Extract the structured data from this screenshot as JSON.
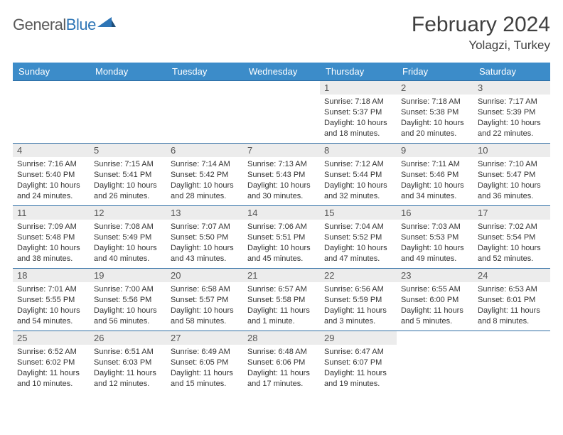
{
  "brand": {
    "name1": "General",
    "name2": "Blue",
    "logo_color": "#2e75b6"
  },
  "title": "February 2024",
  "location": "Yolagzi, Turkey",
  "colors": {
    "header_bg": "#3c8cc9",
    "header_text": "#ffffff",
    "row_divider": "#2e6da4",
    "daynum_bg": "#ececec",
    "text": "#333333"
  },
  "weekdays": [
    "Sunday",
    "Monday",
    "Tuesday",
    "Wednesday",
    "Thursday",
    "Friday",
    "Saturday"
  ],
  "weeks": [
    [
      {
        "n": "",
        "sunrise": "",
        "sunset": "",
        "daylight": ""
      },
      {
        "n": "",
        "sunrise": "",
        "sunset": "",
        "daylight": ""
      },
      {
        "n": "",
        "sunrise": "",
        "sunset": "",
        "daylight": ""
      },
      {
        "n": "",
        "sunrise": "",
        "sunset": "",
        "daylight": ""
      },
      {
        "n": "1",
        "sunrise": "Sunrise: 7:18 AM",
        "sunset": "Sunset: 5:37 PM",
        "daylight": "Daylight: 10 hours and 18 minutes."
      },
      {
        "n": "2",
        "sunrise": "Sunrise: 7:18 AM",
        "sunset": "Sunset: 5:38 PM",
        "daylight": "Daylight: 10 hours and 20 minutes."
      },
      {
        "n": "3",
        "sunrise": "Sunrise: 7:17 AM",
        "sunset": "Sunset: 5:39 PM",
        "daylight": "Daylight: 10 hours and 22 minutes."
      }
    ],
    [
      {
        "n": "4",
        "sunrise": "Sunrise: 7:16 AM",
        "sunset": "Sunset: 5:40 PM",
        "daylight": "Daylight: 10 hours and 24 minutes."
      },
      {
        "n": "5",
        "sunrise": "Sunrise: 7:15 AM",
        "sunset": "Sunset: 5:41 PM",
        "daylight": "Daylight: 10 hours and 26 minutes."
      },
      {
        "n": "6",
        "sunrise": "Sunrise: 7:14 AM",
        "sunset": "Sunset: 5:42 PM",
        "daylight": "Daylight: 10 hours and 28 minutes."
      },
      {
        "n": "7",
        "sunrise": "Sunrise: 7:13 AM",
        "sunset": "Sunset: 5:43 PM",
        "daylight": "Daylight: 10 hours and 30 minutes."
      },
      {
        "n": "8",
        "sunrise": "Sunrise: 7:12 AM",
        "sunset": "Sunset: 5:44 PM",
        "daylight": "Daylight: 10 hours and 32 minutes."
      },
      {
        "n": "9",
        "sunrise": "Sunrise: 7:11 AM",
        "sunset": "Sunset: 5:46 PM",
        "daylight": "Daylight: 10 hours and 34 minutes."
      },
      {
        "n": "10",
        "sunrise": "Sunrise: 7:10 AM",
        "sunset": "Sunset: 5:47 PM",
        "daylight": "Daylight: 10 hours and 36 minutes."
      }
    ],
    [
      {
        "n": "11",
        "sunrise": "Sunrise: 7:09 AM",
        "sunset": "Sunset: 5:48 PM",
        "daylight": "Daylight: 10 hours and 38 minutes."
      },
      {
        "n": "12",
        "sunrise": "Sunrise: 7:08 AM",
        "sunset": "Sunset: 5:49 PM",
        "daylight": "Daylight: 10 hours and 40 minutes."
      },
      {
        "n": "13",
        "sunrise": "Sunrise: 7:07 AM",
        "sunset": "Sunset: 5:50 PM",
        "daylight": "Daylight: 10 hours and 43 minutes."
      },
      {
        "n": "14",
        "sunrise": "Sunrise: 7:06 AM",
        "sunset": "Sunset: 5:51 PM",
        "daylight": "Daylight: 10 hours and 45 minutes."
      },
      {
        "n": "15",
        "sunrise": "Sunrise: 7:04 AM",
        "sunset": "Sunset: 5:52 PM",
        "daylight": "Daylight: 10 hours and 47 minutes."
      },
      {
        "n": "16",
        "sunrise": "Sunrise: 7:03 AM",
        "sunset": "Sunset: 5:53 PM",
        "daylight": "Daylight: 10 hours and 49 minutes."
      },
      {
        "n": "17",
        "sunrise": "Sunrise: 7:02 AM",
        "sunset": "Sunset: 5:54 PM",
        "daylight": "Daylight: 10 hours and 52 minutes."
      }
    ],
    [
      {
        "n": "18",
        "sunrise": "Sunrise: 7:01 AM",
        "sunset": "Sunset: 5:55 PM",
        "daylight": "Daylight: 10 hours and 54 minutes."
      },
      {
        "n": "19",
        "sunrise": "Sunrise: 7:00 AM",
        "sunset": "Sunset: 5:56 PM",
        "daylight": "Daylight: 10 hours and 56 minutes."
      },
      {
        "n": "20",
        "sunrise": "Sunrise: 6:58 AM",
        "sunset": "Sunset: 5:57 PM",
        "daylight": "Daylight: 10 hours and 58 minutes."
      },
      {
        "n": "21",
        "sunrise": "Sunrise: 6:57 AM",
        "sunset": "Sunset: 5:58 PM",
        "daylight": "Daylight: 11 hours and 1 minute."
      },
      {
        "n": "22",
        "sunrise": "Sunrise: 6:56 AM",
        "sunset": "Sunset: 5:59 PM",
        "daylight": "Daylight: 11 hours and 3 minutes."
      },
      {
        "n": "23",
        "sunrise": "Sunrise: 6:55 AM",
        "sunset": "Sunset: 6:00 PM",
        "daylight": "Daylight: 11 hours and 5 minutes."
      },
      {
        "n": "24",
        "sunrise": "Sunrise: 6:53 AM",
        "sunset": "Sunset: 6:01 PM",
        "daylight": "Daylight: 11 hours and 8 minutes."
      }
    ],
    [
      {
        "n": "25",
        "sunrise": "Sunrise: 6:52 AM",
        "sunset": "Sunset: 6:02 PM",
        "daylight": "Daylight: 11 hours and 10 minutes."
      },
      {
        "n": "26",
        "sunrise": "Sunrise: 6:51 AM",
        "sunset": "Sunset: 6:03 PM",
        "daylight": "Daylight: 11 hours and 12 minutes."
      },
      {
        "n": "27",
        "sunrise": "Sunrise: 6:49 AM",
        "sunset": "Sunset: 6:05 PM",
        "daylight": "Daylight: 11 hours and 15 minutes."
      },
      {
        "n": "28",
        "sunrise": "Sunrise: 6:48 AM",
        "sunset": "Sunset: 6:06 PM",
        "daylight": "Daylight: 11 hours and 17 minutes."
      },
      {
        "n": "29",
        "sunrise": "Sunrise: 6:47 AM",
        "sunset": "Sunset: 6:07 PM",
        "daylight": "Daylight: 11 hours and 19 minutes."
      },
      {
        "n": "",
        "sunrise": "",
        "sunset": "",
        "daylight": ""
      },
      {
        "n": "",
        "sunrise": "",
        "sunset": "",
        "daylight": ""
      }
    ]
  ]
}
